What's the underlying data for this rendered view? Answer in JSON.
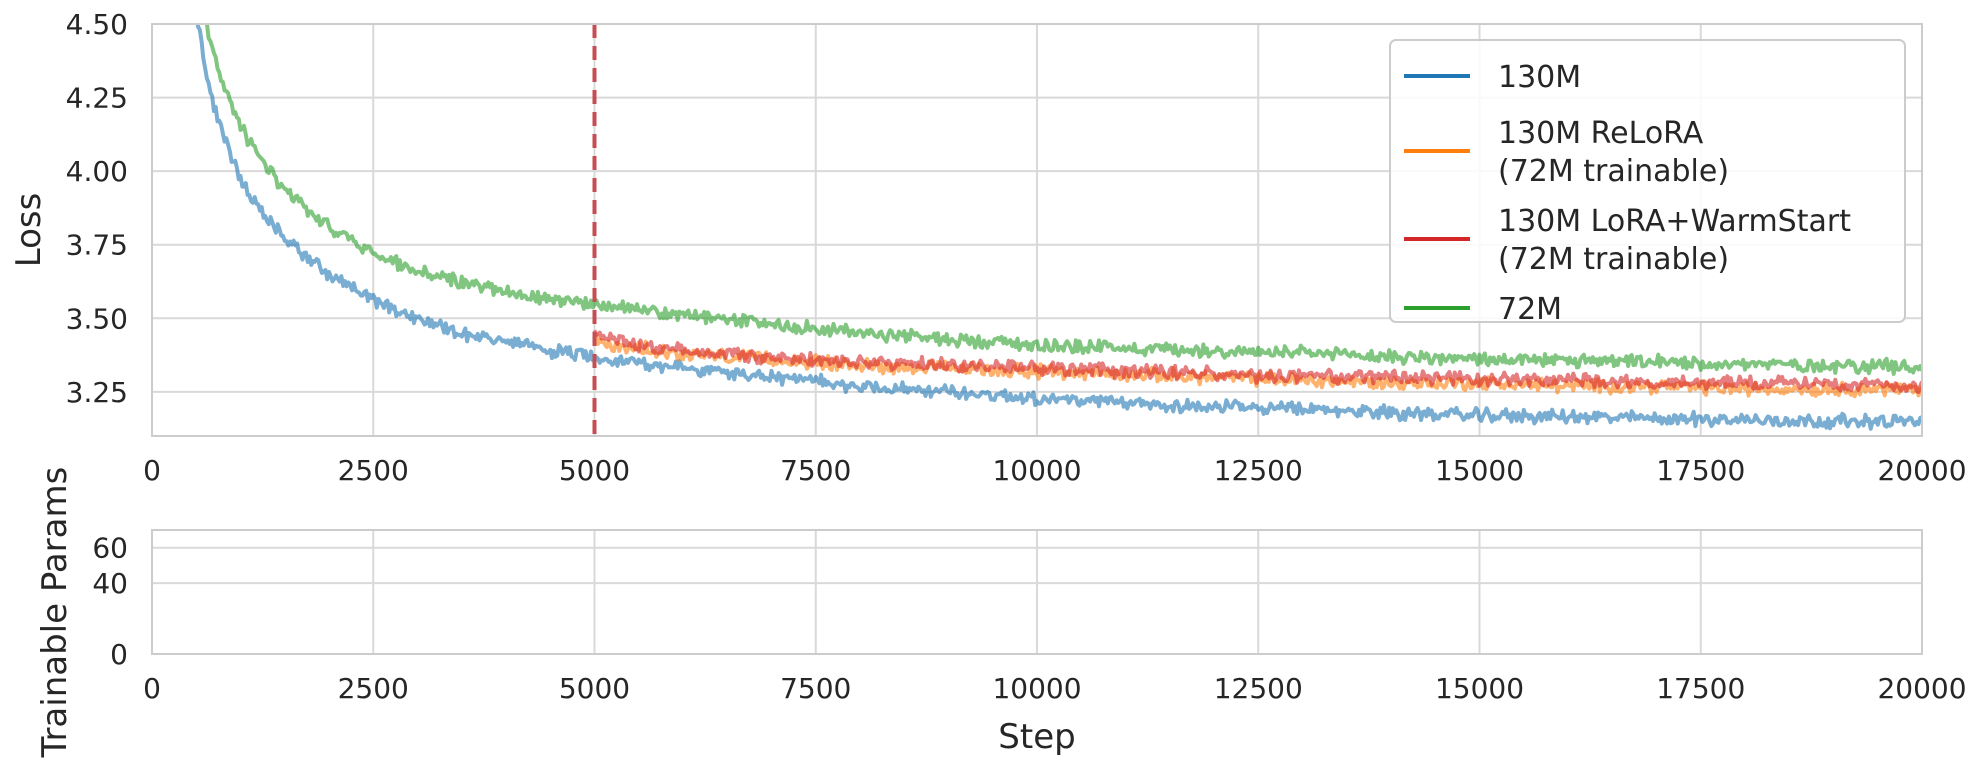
{
  "colors": {
    "grid": "#d9d9d9",
    "frame": "#cccccc",
    "text": "#262626",
    "dash": "#c44e52"
  },
  "chart_data": [
    {
      "type": "line",
      "xlabel": "",
      "ylabel": "Loss",
      "xlim": [
        0,
        20000
      ],
      "ylim": [
        3.1,
        4.5
      ],
      "xticks": [
        "0",
        "2500",
        "5000",
        "7500",
        "10000",
        "12500",
        "15000",
        "17500",
        "20000"
      ],
      "yticks": [
        "3.25",
        "3.50",
        "3.75",
        "4.00",
        "4.25",
        "4.50"
      ],
      "grid": true,
      "legend_position": "top-right",
      "annotations": [
        {
          "type": "vertical-dashed-line",
          "x": 5000
        }
      ],
      "series": [
        {
          "name": "130M",
          "color": "#1f77b4",
          "x": [
            500,
            600,
            700,
            800,
            1000,
            1200,
            1500,
            2000,
            2500,
            3000,
            3500,
            4000,
            4500,
            5000,
            5500,
            6000,
            7000,
            8000,
            9000,
            10000,
            11000,
            12000,
            13000,
            14000,
            15000,
            16000,
            17000,
            18000,
            19000,
            20000
          ],
          "y": [
            4.55,
            4.35,
            4.22,
            4.12,
            3.98,
            3.87,
            3.77,
            3.65,
            3.56,
            3.5,
            3.45,
            3.42,
            3.39,
            3.37,
            3.35,
            3.33,
            3.3,
            3.27,
            3.25,
            3.23,
            3.21,
            3.2,
            3.19,
            3.18,
            3.17,
            3.165,
            3.16,
            3.155,
            3.15,
            3.15
          ]
        },
        {
          "name": "130M ReLoRA\n(72M trainable)",
          "color": "#ff7f0e",
          "x": [
            5000,
            5200,
            5500,
            6000,
            7000,
            8000,
            9000,
            10000,
            11000,
            12000,
            13000,
            14000,
            15000,
            16000,
            17000,
            18000,
            19000,
            20000
          ],
          "y": [
            3.43,
            3.4,
            3.4,
            3.38,
            3.36,
            3.34,
            3.33,
            3.32,
            3.31,
            3.3,
            3.29,
            3.28,
            3.28,
            3.27,
            3.27,
            3.26,
            3.26,
            3.26
          ]
        },
        {
          "name": "130M LoRA+WarmStart\n(72M trainable)",
          "color": "#d62728",
          "x": [
            5000,
            5200,
            5500,
            6000,
            7000,
            8000,
            9000,
            10000,
            11000,
            12000,
            13000,
            14000,
            15000,
            16000,
            17000,
            18000,
            19000,
            20000
          ],
          "y": [
            3.45,
            3.42,
            3.41,
            3.39,
            3.37,
            3.35,
            3.34,
            3.33,
            3.32,
            3.31,
            3.3,
            3.3,
            3.29,
            3.29,
            3.28,
            3.28,
            3.28,
            3.27
          ]
        },
        {
          "name": "72M",
          "color": "#2ca02c",
          "x": [
            600,
            700,
            800,
            900,
            1000,
            1200,
            1500,
            2000,
            2500,
            3000,
            3500,
            4000,
            4500,
            5000,
            5500,
            6000,
            7000,
            8000,
            9000,
            10000,
            11000,
            12000,
            13000,
            14000,
            15000,
            16000,
            17000,
            18000,
            19000,
            20000
          ],
          "y": [
            4.52,
            4.4,
            4.3,
            4.22,
            4.15,
            4.05,
            3.93,
            3.81,
            3.72,
            3.66,
            3.62,
            3.59,
            3.57,
            3.55,
            3.53,
            3.51,
            3.48,
            3.45,
            3.43,
            3.41,
            3.4,
            3.39,
            3.38,
            3.37,
            3.36,
            3.355,
            3.35,
            3.345,
            3.34,
            3.335
          ]
        }
      ]
    },
    {
      "type": "line",
      "xlabel": "Step",
      "ylabel": "Trainable Params",
      "xlim": [
        0,
        20000
      ],
      "ylim": [
        0,
        70
      ],
      "xticks": [
        "0",
        "2500",
        "5000",
        "7500",
        "10000",
        "12500",
        "15000",
        "17500",
        "20000"
      ],
      "yticks": [
        "0",
        "40",
        "60"
      ],
      "grid": true,
      "series": []
    }
  ]
}
